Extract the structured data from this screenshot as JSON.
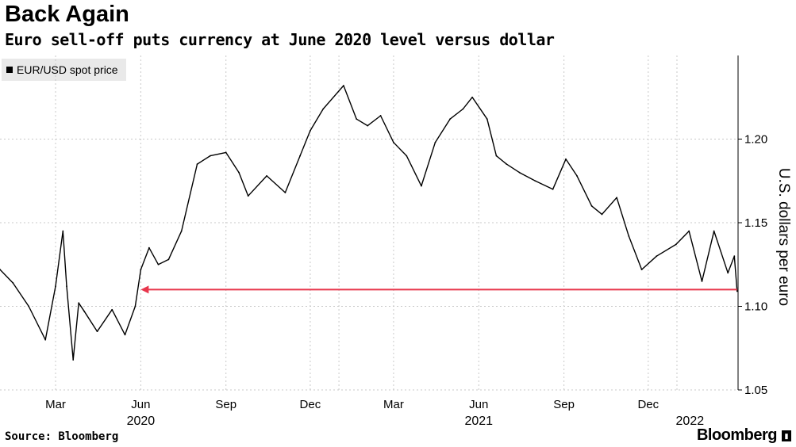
{
  "header": {
    "title": "Back Again",
    "subtitle": "Euro sell-off puts currency at June 2020 level versus dollar"
  },
  "footer": {
    "source": "Source: Bloomberg",
    "brand": "Bloomberg"
  },
  "colors": {
    "series": "#000000",
    "arrow": "#e8364c",
    "grid": "#c8c8c8",
    "legend_bg": "#e9e9e9"
  },
  "chart_data": {
    "type": "line",
    "title": "Back Again",
    "subtitle": "Euro sell-off puts currency at June 2020 level versus dollar",
    "ylabel": "U.S. dollars per euro",
    "ylim": [
      1.05,
      1.25
    ],
    "y_ticks": [
      "1.05",
      "1.10",
      "1.15",
      "1.20"
    ],
    "x_ticks": [
      "Mar",
      "Jun",
      "Sep",
      "Dec",
      "Mar",
      "Jun",
      "Sep",
      "Dec"
    ],
    "x_years": [
      "2020",
      "2021",
      "2022"
    ],
    "legend": "top-left",
    "grid": true,
    "series": [
      {
        "name": "EUR/USD spot price",
        "x": [
          "2020-01-01",
          "2020-01-15",
          "2020-02-01",
          "2020-02-19",
          "2020-03-01",
          "2020-03-09",
          "2020-03-13",
          "2020-03-20",
          "2020-03-26",
          "2020-04-01",
          "2020-04-15",
          "2020-05-01",
          "2020-05-15",
          "2020-05-26",
          "2020-06-01",
          "2020-06-10",
          "2020-06-20",
          "2020-07-01",
          "2020-07-15",
          "2020-08-01",
          "2020-08-15",
          "2020-09-01",
          "2020-09-15",
          "2020-09-25",
          "2020-10-15",
          "2020-11-04",
          "2020-11-20",
          "2020-12-01",
          "2020-12-15",
          "2021-01-06",
          "2021-01-20",
          "2021-02-01",
          "2021-02-15",
          "2021-03-01",
          "2021-03-15",
          "2021-03-31",
          "2021-04-15",
          "2021-05-01",
          "2021-05-15",
          "2021-05-25",
          "2021-06-10",
          "2021-06-20",
          "2021-07-01",
          "2021-07-15",
          "2021-08-01",
          "2021-08-20",
          "2021-09-03",
          "2021-09-15",
          "2021-10-01",
          "2021-10-12",
          "2021-10-28",
          "2021-11-10",
          "2021-11-24",
          "2021-12-10",
          "2021-12-31",
          "2022-01-14",
          "2022-01-28",
          "2022-02-10",
          "2022-02-25",
          "2022-03-04",
          "2022-03-07"
        ],
        "y": [
          1.122,
          1.114,
          1.1,
          1.08,
          1.112,
          1.145,
          1.112,
          1.068,
          1.102,
          1.097,
          1.085,
          1.098,
          1.083,
          1.1,
          1.122,
          1.135,
          1.125,
          1.128,
          1.145,
          1.185,
          1.19,
          1.192,
          1.18,
          1.166,
          1.178,
          1.168,
          1.19,
          1.205,
          1.218,
          1.232,
          1.212,
          1.208,
          1.214,
          1.198,
          1.19,
          1.172,
          1.198,
          1.212,
          1.218,
          1.225,
          1.212,
          1.19,
          1.185,
          1.18,
          1.175,
          1.17,
          1.188,
          1.178,
          1.16,
          1.155,
          1.165,
          1.142,
          1.122,
          1.13,
          1.137,
          1.145,
          1.115,
          1.145,
          1.12,
          1.13,
          1.109
        ]
      }
    ],
    "annotations": [
      {
        "type": "arrow",
        "y": 1.11,
        "from": "2022-03-07",
        "to": "2020-06-01"
      }
    ]
  }
}
